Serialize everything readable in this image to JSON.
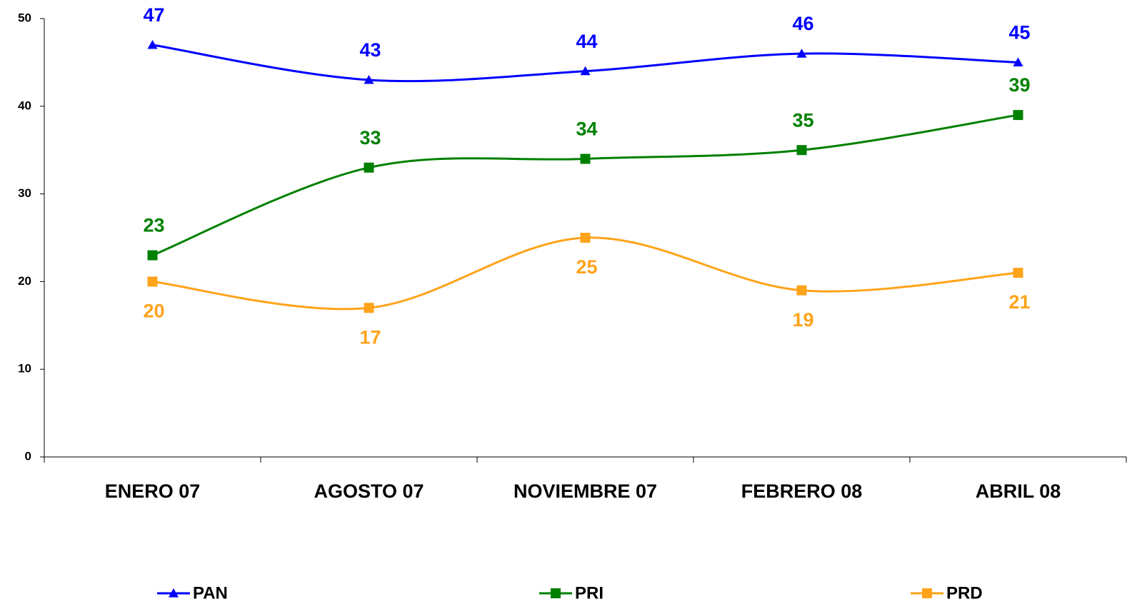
{
  "chart_data": {
    "type": "line",
    "categories": [
      "ENERO 07",
      "AGOSTO 07",
      "NOVIEMBRE 07",
      "FEBRERO 08",
      "ABRIL 08"
    ],
    "series": [
      {
        "name": "PAN",
        "color": "#0000ff",
        "marker": "triangle",
        "values": [
          47,
          43,
          44,
          46,
          45
        ]
      },
      {
        "name": "PRI",
        "color": "#008000",
        "marker": "square",
        "values": [
          23,
          33,
          34,
          35,
          39
        ]
      },
      {
        "name": "PRD",
        "color": "#ffa31a",
        "marker": "square",
        "values": [
          20,
          17,
          25,
          19,
          21
        ]
      }
    ],
    "ylim": [
      0,
      50
    ],
    "yticks": [
      0,
      10,
      20,
      30,
      40,
      50
    ],
    "smooth": true
  }
}
